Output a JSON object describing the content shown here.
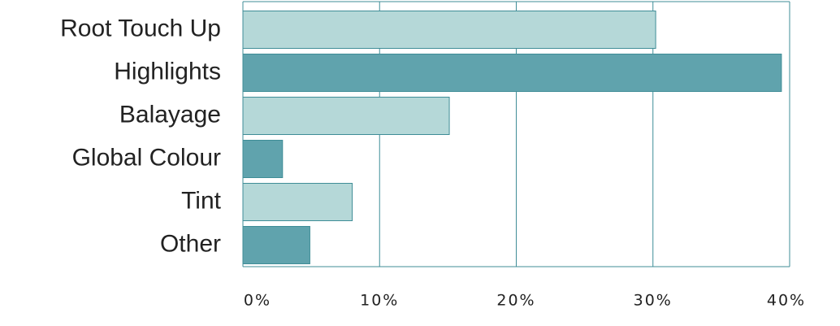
{
  "chart_data": {
    "type": "hbar",
    "categories": [
      "Root Touch Up",
      "Highlights",
      "Balayage",
      "Global Colour",
      "Tint",
      "Other"
    ],
    "values": [
      30.2,
      39.4,
      15.1,
      2.9,
      8.0,
      4.9
    ],
    "colors": [
      "#b5d8d8",
      "#60a3ad",
      "#b5d8d8",
      "#60a3ad",
      "#b5d8d8",
      "#60a3ad"
    ],
    "xlim": [
      0,
      40
    ],
    "xticks": [
      {
        "value": 0,
        "label": "0%"
      },
      {
        "value": 10,
        "label": "10%"
      },
      {
        "value": 20,
        "label": "20%"
      },
      {
        "value": 30,
        "label": "30%"
      },
      {
        "value": 40,
        "label": "40%"
      }
    ],
    "grid": true
  }
}
